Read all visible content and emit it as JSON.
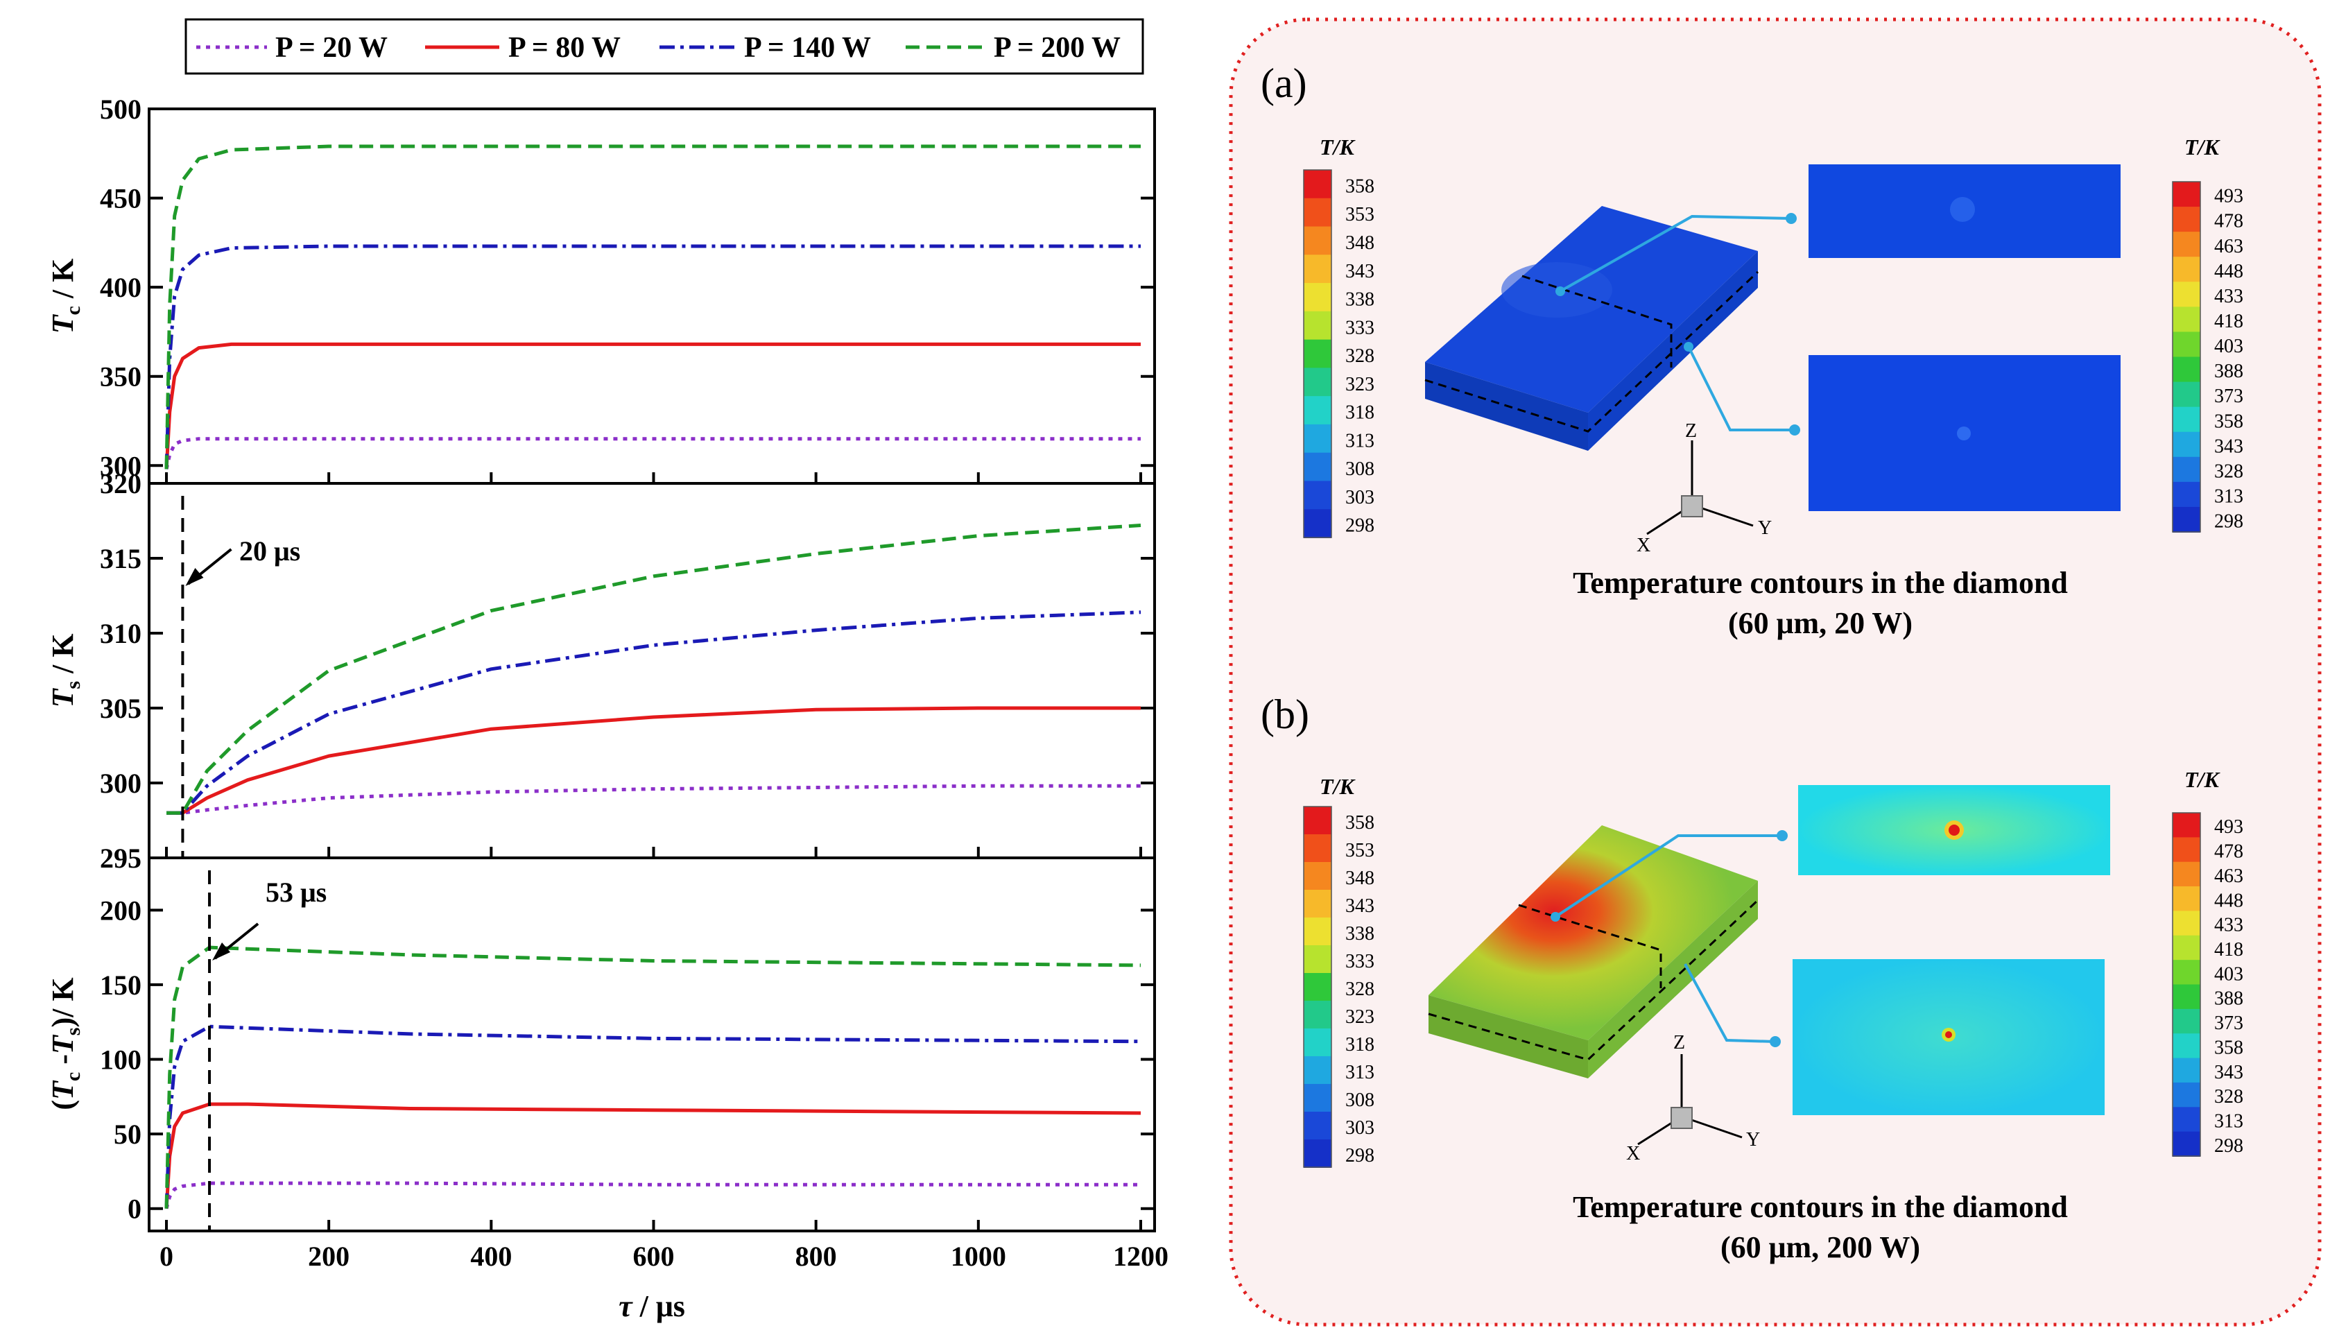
{
  "legend": [
    {
      "label": "P = 20 W",
      "color": "#8B2FC9",
      "dash": "dot"
    },
    {
      "label": "P = 80 W",
      "color": "#E41A1C",
      "dash": "solid"
    },
    {
      "label": "P = 140 W",
      "color": "#1A1AB5",
      "dash": "dashdot"
    },
    {
      "label": "P = 200 W",
      "color": "#1F9A2A",
      "dash": "dash"
    }
  ],
  "chart_data": [
    {
      "type": "line",
      "id": "Tc",
      "title": "",
      "xlabel": "τ / μs",
      "ylabel": "Tc / K",
      "xlim": [
        0,
        1200
      ],
      "ylim": [
        290,
        500
      ],
      "yticks": [
        300,
        350,
        400,
        450,
        500
      ],
      "series": [
        {
          "name": "P = 20 W",
          "x": [
            0,
            4,
            10,
            20,
            40,
            80,
            200,
            600,
            1200
          ],
          "values": [
            298,
            306,
            312,
            314,
            315,
            315,
            315,
            315,
            315
          ]
        },
        {
          "name": "P = 80 W",
          "x": [
            0,
            4,
            10,
            20,
            40,
            80,
            200,
            600,
            1200
          ],
          "values": [
            298,
            330,
            350,
            360,
            366,
            368,
            368,
            368,
            368
          ]
        },
        {
          "name": "P = 140 W",
          "x": [
            0,
            4,
            10,
            20,
            40,
            80,
            200,
            600,
            1200
          ],
          "values": [
            298,
            360,
            395,
            410,
            418,
            422,
            423,
            423,
            423
          ]
        },
        {
          "name": "P = 200 W",
          "x": [
            0,
            4,
            10,
            20,
            40,
            80,
            200,
            600,
            1200
          ],
          "values": [
            298,
            390,
            440,
            460,
            472,
            477,
            479,
            479,
            479
          ]
        }
      ]
    },
    {
      "type": "line",
      "id": "Ts",
      "title": "",
      "xlabel": "τ / μs",
      "ylabel": "Ts / K",
      "xlim": [
        0,
        1200
      ],
      "ylim": [
        295,
        320
      ],
      "yticks": [
        295,
        300,
        305,
        310,
        315,
        320
      ],
      "annotation": {
        "label": "20 μs",
        "x": 20
      },
      "series": [
        {
          "name": "P = 20 W",
          "x": [
            0,
            20,
            50,
            100,
            200,
            400,
            600,
            800,
            1000,
            1200
          ],
          "values": [
            298,
            298,
            298.2,
            298.5,
            299,
            299.4,
            299.6,
            299.7,
            299.8,
            299.8
          ]
        },
        {
          "name": "P = 80 W",
          "x": [
            0,
            20,
            50,
            100,
            200,
            400,
            600,
            800,
            1000,
            1200
          ],
          "values": [
            298,
            298,
            299,
            300.2,
            301.8,
            303.6,
            304.4,
            304.9,
            305,
            305
          ]
        },
        {
          "name": "P = 140 W",
          "x": [
            0,
            20,
            50,
            100,
            200,
            400,
            600,
            800,
            1000,
            1200
          ],
          "values": [
            298,
            298,
            299.8,
            301.8,
            304.6,
            307.6,
            309.2,
            310.2,
            311,
            311.4
          ]
        },
        {
          "name": "P = 200 W",
          "x": [
            0,
            20,
            50,
            100,
            200,
            400,
            600,
            800,
            1000,
            1200
          ],
          "values": [
            298,
            298,
            300.8,
            303.5,
            307.5,
            311.5,
            313.8,
            315.3,
            316.5,
            317.2
          ]
        }
      ]
    },
    {
      "type": "line",
      "id": "dT",
      "title": "",
      "xlabel": "τ / μs",
      "ylabel": "(Tc -Ts)/ K",
      "xlim": [
        0,
        1200
      ],
      "ylim": [
        -15,
        235
      ],
      "yticks": [
        0,
        50,
        100,
        150,
        200
      ],
      "xticks": [
        0,
        200,
        400,
        600,
        800,
        1000,
        1200
      ],
      "annotation": {
        "label": "53 μs",
        "x": 53
      },
      "series": [
        {
          "name": "P = 20 W",
          "x": [
            0,
            4,
            10,
            20,
            53,
            100,
            300,
            600,
            1200
          ],
          "values": [
            0,
            8,
            13,
            15,
            17,
            17,
            17,
            16,
            16
          ]
        },
        {
          "name": "P = 80 W",
          "x": [
            0,
            4,
            10,
            20,
            53,
            100,
            300,
            600,
            1200
          ],
          "values": [
            0,
            35,
            55,
            64,
            70,
            70,
            67,
            66,
            64
          ]
        },
        {
          "name": "P = 140 W",
          "x": [
            0,
            4,
            10,
            20,
            53,
            100,
            300,
            600,
            1200
          ],
          "values": [
            0,
            60,
            95,
            112,
            122,
            121,
            117,
            114,
            112
          ]
        },
        {
          "name": "P = 200 W",
          "x": [
            0,
            4,
            10,
            20,
            53,
            100,
            300,
            600,
            1200
          ],
          "values": [
            0,
            90,
            140,
            162,
            175,
            174,
            170,
            166,
            163
          ]
        }
      ]
    }
  ],
  "contours": {
    "a": {
      "label": "(a)",
      "caption1": "Temperature contours in the diamond",
      "caption2": "(60 μm, 20 W)",
      "block_color": "#1046D0",
      "section1_color": "#1048E0",
      "section2_color": "#1146E2"
    },
    "b": {
      "label": "(b)",
      "caption1": "Temperature contours in the diamond",
      "caption2": "(60 μm, 200 W)",
      "block_color": "#8CC63F",
      "section1_color": "#22D9E8",
      "section2_color": "#22D2EA"
    },
    "scale_title": "T/K",
    "left_scale": [
      "358",
      "353",
      "348",
      "343",
      "338",
      "333",
      "328",
      "323",
      "318",
      "313",
      "308",
      "303",
      "298"
    ],
    "right_scale": [
      "493",
      "478",
      "463",
      "448",
      "433",
      "418",
      "403",
      "388",
      "373",
      "358",
      "343",
      "328",
      "313",
      "298"
    ],
    "scale_colors": [
      "#E31A1C",
      "#F0501A",
      "#F5871F",
      "#F7B92A",
      "#EDE030",
      "#B7E32E",
      "#6FD62C",
      "#2FC83A",
      "#22C98A",
      "#22D2C8",
      "#1FA8E0",
      "#1C78E0",
      "#1A48D8",
      "#1530C8"
    ],
    "axes": {
      "x": "X",
      "y": "Y",
      "z": "Z"
    }
  }
}
